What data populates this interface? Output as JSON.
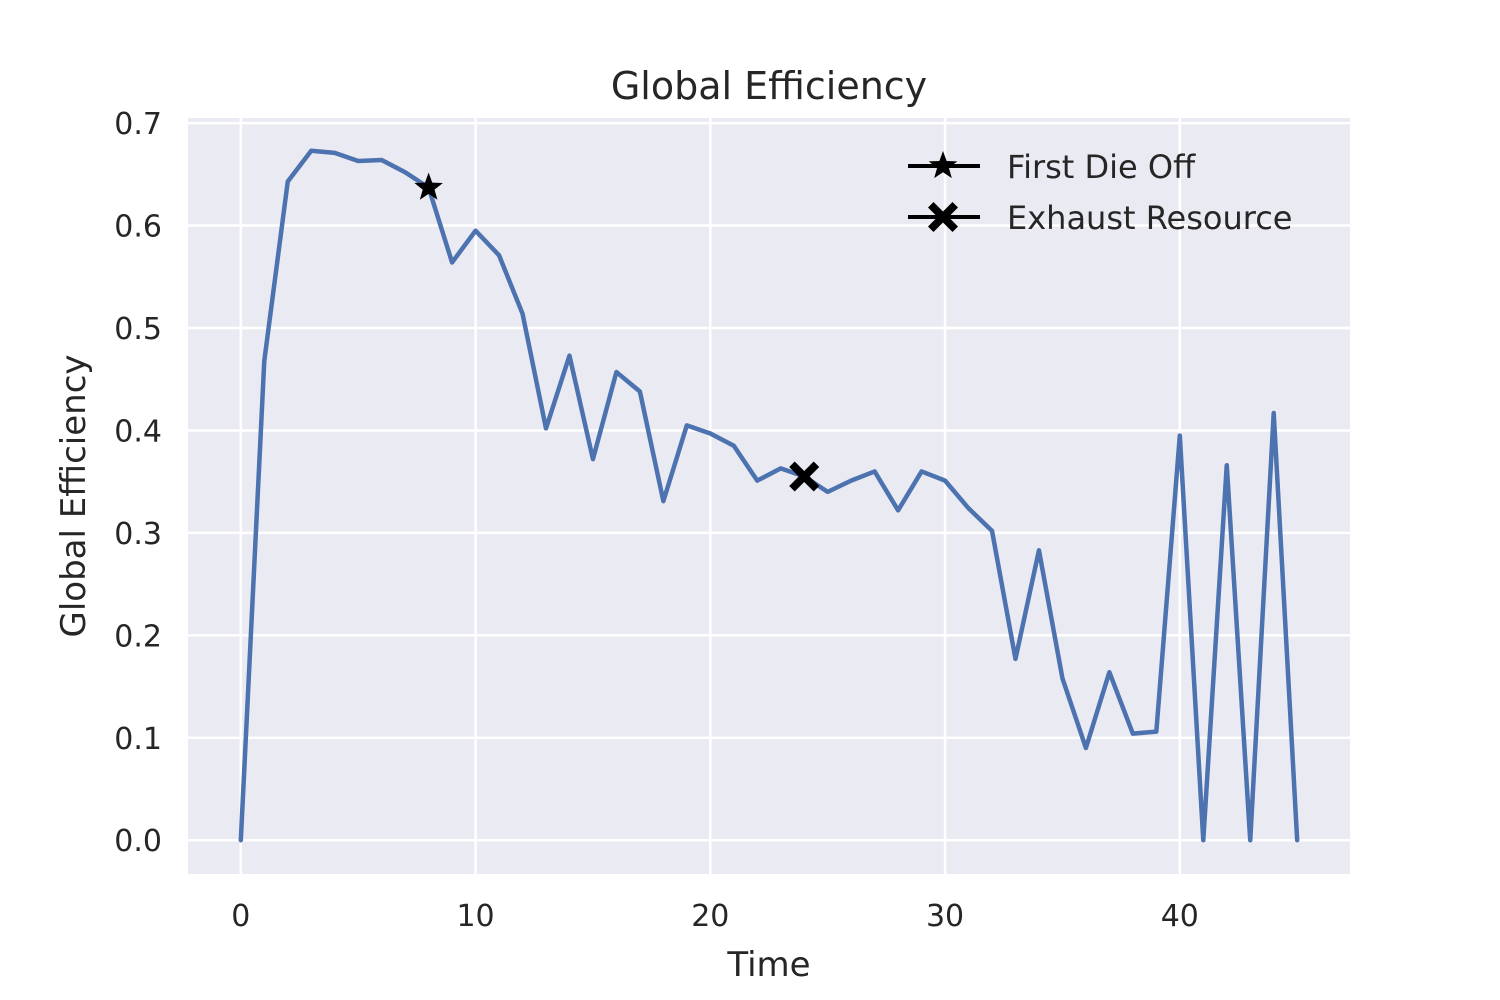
{
  "chart_data": {
    "type": "line",
    "title": "Global Efficiency",
    "xlabel": "Time",
    "ylabel": "Global Efficiency",
    "xlim": [
      -2.25,
      47.25
    ],
    "ylim": [
      -0.033,
      0.705
    ],
    "xticks": [
      0,
      10,
      20,
      30,
      40
    ],
    "yticks": [
      0.0,
      0.1,
      0.2,
      0.3,
      0.4,
      0.5,
      0.6,
      0.7
    ],
    "ytick_labels": [
      "0.0",
      "0.1",
      "0.2",
      "0.3",
      "0.4",
      "0.5",
      "0.6",
      "0.7"
    ],
    "grid": true,
    "legend_position": "top-right",
    "colors": {
      "background": "#eaeaf2",
      "grid": "#ffffff",
      "line": "#4c72b0",
      "markers": "#000000"
    },
    "series": [
      {
        "x": [
          0,
          1,
          2,
          3,
          4,
          5,
          6,
          7,
          8,
          9,
          10,
          11,
          12,
          13,
          14,
          15,
          16,
          17,
          18,
          19,
          20,
          21,
          22,
          23,
          24,
          25,
          26,
          27,
          28,
          29,
          30,
          31,
          32,
          33,
          34,
          35,
          36,
          37,
          38,
          39,
          40,
          41,
          42,
          43,
          44,
          45
        ],
        "y": [
          0.0,
          0.468,
          0.643,
          0.673,
          0.671,
          0.663,
          0.664,
          0.652,
          0.637,
          0.564,
          0.595,
          0.571,
          0.514,
          0.402,
          0.473,
          0.372,
          0.457,
          0.438,
          0.331,
          0.405,
          0.397,
          0.385,
          0.351,
          0.363,
          0.355,
          0.34,
          0.351,
          0.36,
          0.322,
          0.36,
          0.351,
          0.324,
          0.302,
          0.177,
          0.283,
          0.158,
          0.09,
          0.164,
          0.104,
          0.106,
          0.395,
          0.0,
          0.366,
          0.0,
          0.417,
          0.0
        ]
      }
    ],
    "markers": [
      {
        "name": "First Die Off",
        "symbol": "star",
        "x": 8,
        "y": 0.637
      },
      {
        "name": "Exhaust Resource",
        "symbol": "x",
        "x": 24,
        "y": 0.355
      }
    ]
  }
}
